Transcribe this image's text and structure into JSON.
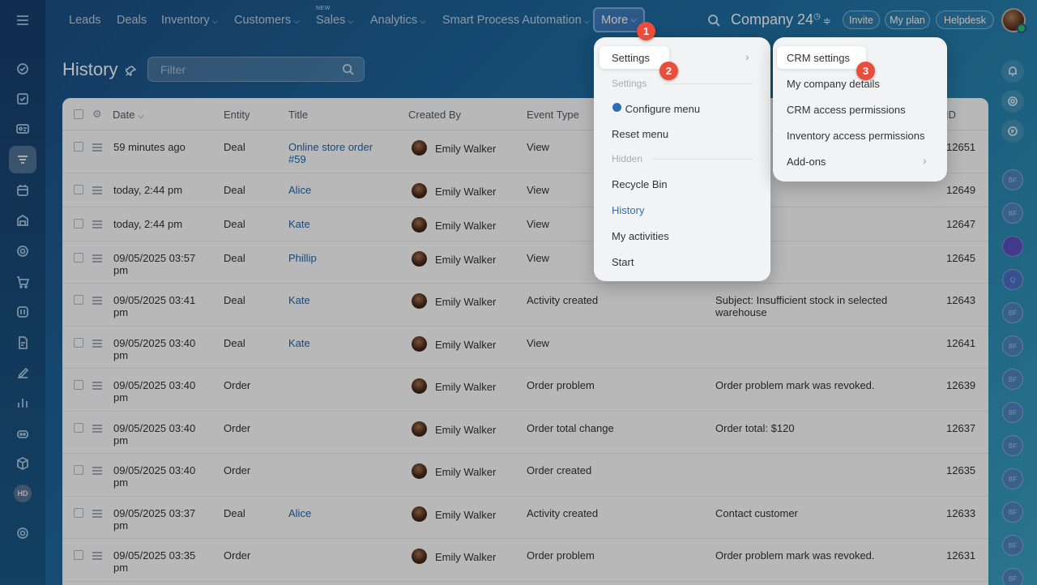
{
  "nav": {
    "items": [
      "Leads",
      "Deals",
      "Inventory",
      "Customers",
      "Sales",
      "Analytics",
      "Smart Process Automation"
    ],
    "new_badge": "NEW",
    "more_label": "More",
    "company": "Company 24",
    "invite": "Invite",
    "my_plan": "My plan",
    "helpdesk": "Helpdesk"
  },
  "sidebar": {
    "hd_label": "HD"
  },
  "page": {
    "title": "History",
    "filter_placeholder": "Filter"
  },
  "table": {
    "headers": [
      "Date",
      "Entity",
      "Title",
      "Created By",
      "Event Type",
      "ID"
    ],
    "rows": [
      {
        "date": "59 minutes ago",
        "entity": "Deal",
        "title": "Online store order #59",
        "user": "Emily Walker",
        "event": "View",
        "details": "",
        "id": "12651"
      },
      {
        "date": "today, 2:44 pm",
        "entity": "Deal",
        "title": "Alice",
        "user": "Emily Walker",
        "event": "View",
        "details": "",
        "id": "12649"
      },
      {
        "date": "today, 2:44 pm",
        "entity": "Deal",
        "title": "Kate",
        "user": "Emily Walker",
        "event": "View",
        "details": "",
        "id": "12647"
      },
      {
        "date": "09/05/2025 03:57 pm",
        "entity": "Deal",
        "title": "Phillip",
        "user": "Emily Walker",
        "event": "View",
        "details": "",
        "id": "12645"
      },
      {
        "date": "09/05/2025 03:41 pm",
        "entity": "Deal",
        "title": "Kate",
        "user": "Emily Walker",
        "event": "Activity created",
        "details": "Subject: Insufficient stock in selected warehouse",
        "id": "12643"
      },
      {
        "date": "09/05/2025 03:40 pm",
        "entity": "Deal",
        "title": "Kate",
        "user": "Emily Walker",
        "event": "View",
        "details": "",
        "id": "12641"
      },
      {
        "date": "09/05/2025 03:40 pm",
        "entity": "Order",
        "title": "",
        "user": "Emily Walker",
        "event": "Order problem",
        "details": "Order problem mark was revoked.",
        "id": "12639"
      },
      {
        "date": "09/05/2025 03:40 pm",
        "entity": "Order",
        "title": "",
        "user": "Emily Walker",
        "event": "Order total change",
        "details": "Order total: $120",
        "id": "12637"
      },
      {
        "date": "09/05/2025 03:40 pm",
        "entity": "Order",
        "title": "",
        "user": "Emily Walker",
        "event": "Order created",
        "details": "",
        "id": "12635"
      },
      {
        "date": "09/05/2025 03:37 pm",
        "entity": "Deal",
        "title": "Alice",
        "user": "Emily Walker",
        "event": "Activity created",
        "details": "Contact customer",
        "id": "12633"
      },
      {
        "date": "09/05/2025 03:35 pm",
        "entity": "Order",
        "title": "",
        "user": "Emily Walker",
        "event": "Order problem",
        "details": "Order problem mark was revoked.",
        "id": "12631"
      }
    ]
  },
  "more_menu": {
    "settings": "Settings",
    "section_settings": "Settings",
    "configure_menu": "Configure menu",
    "reset_menu": "Reset menu",
    "section_hidden": "Hidden",
    "recycle_bin": "Recycle Bin",
    "history": "History",
    "my_activities": "My activities",
    "start": "Start"
  },
  "settings_menu": {
    "crm_settings": "CRM settings",
    "company_details": "My company details",
    "crm_access": "CRM access permissions",
    "inventory_access": "Inventory access permissions",
    "addons": "Add-ons"
  },
  "steps": [
    "1",
    "2",
    "3"
  ],
  "right_avatars": [
    "BF",
    "BF",
    "",
    "Q",
    "BF",
    "BF",
    "BF",
    "BF",
    "BF",
    "BF",
    "BF",
    "BF",
    "BF"
  ],
  "colors": {
    "accent": "#2f6eb5",
    "badge": "#e94e3d",
    "link": "#2067b0"
  }
}
